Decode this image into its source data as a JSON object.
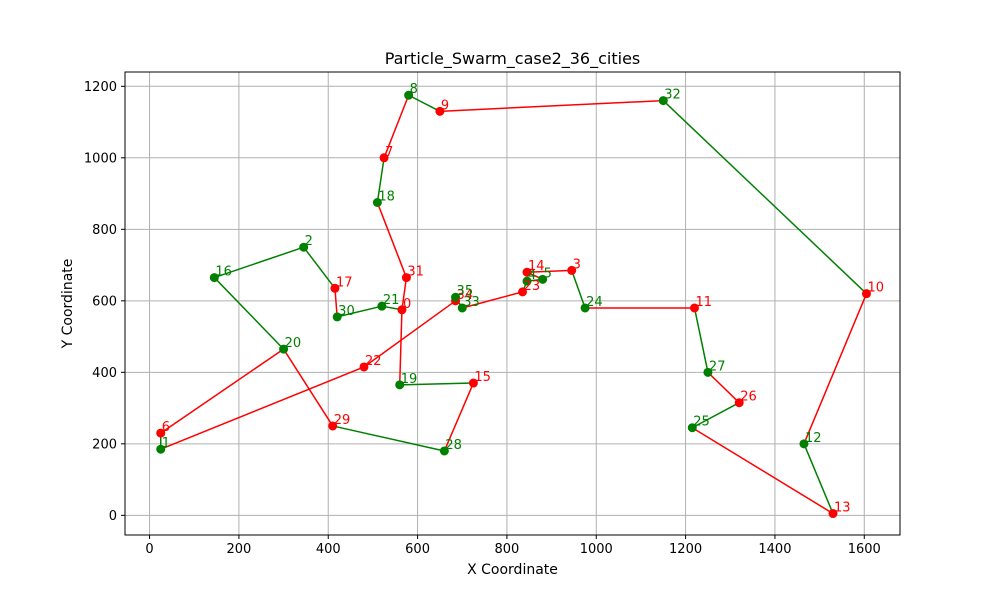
{
  "chart_data": {
    "type": "scatter",
    "title": "Particle_Swarm_case2_36_cities",
    "xlabel": "X Coordinate",
    "ylabel": "Y Coordinate",
    "xlim": [
      -55,
      1680
    ],
    "ylim": [
      -55,
      1240
    ],
    "xticks": [
      0,
      200,
      400,
      600,
      800,
      1000,
      1200,
      1400,
      1600
    ],
    "yticks": [
      0,
      200,
      400,
      600,
      800,
      1000,
      1200
    ],
    "grid": true,
    "colors": {
      "red": "#ff0000",
      "green": "#008000"
    },
    "cities": [
      {
        "id": "0",
        "x": 565,
        "y": 575,
        "color": "red"
      },
      {
        "id": "1",
        "x": 25,
        "y": 185,
        "color": "green"
      },
      {
        "id": "2",
        "x": 345,
        "y": 750,
        "color": "green"
      },
      {
        "id": "3",
        "x": 945,
        "y": 685,
        "color": "red"
      },
      {
        "id": "4",
        "x": 845,
        "y": 655,
        "color": "green"
      },
      {
        "id": "5",
        "x": 880,
        "y": 660,
        "color": "green"
      },
      {
        "id": "6",
        "x": 25,
        "y": 230,
        "color": "red"
      },
      {
        "id": "7",
        "x": 525,
        "y": 1000,
        "color": "red"
      },
      {
        "id": "8",
        "x": 580,
        "y": 1175,
        "color": "green"
      },
      {
        "id": "9",
        "x": 650,
        "y": 1130,
        "color": "red"
      },
      {
        "id": "10",
        "x": 1605,
        "y": 620,
        "color": "red"
      },
      {
        "id": "11",
        "x": 1220,
        "y": 580,
        "color": "red"
      },
      {
        "id": "12",
        "x": 1465,
        "y": 200,
        "color": "green"
      },
      {
        "id": "13",
        "x": 1530,
        "y": 5,
        "color": "red"
      },
      {
        "id": "14",
        "x": 845,
        "y": 680,
        "color": "red"
      },
      {
        "id": "15",
        "x": 725,
        "y": 370,
        "color": "red"
      },
      {
        "id": "16",
        "x": 145,
        "y": 665,
        "color": "green"
      },
      {
        "id": "17",
        "x": 415,
        "y": 635,
        "color": "red"
      },
      {
        "id": "18",
        "x": 510,
        "y": 875,
        "color": "green"
      },
      {
        "id": "19",
        "x": 560,
        "y": 365,
        "color": "green"
      },
      {
        "id": "20",
        "x": 300,
        "y": 465,
        "color": "green"
      },
      {
        "id": "21",
        "x": 520,
        "y": 585,
        "color": "green"
      },
      {
        "id": "22",
        "x": 480,
        "y": 415,
        "color": "red"
      },
      {
        "id": "23",
        "x": 835,
        "y": 625,
        "color": "red"
      },
      {
        "id": "24",
        "x": 975,
        "y": 580,
        "color": "green"
      },
      {
        "id": "25",
        "x": 1215,
        "y": 245,
        "color": "green"
      },
      {
        "id": "26",
        "x": 1320,
        "y": 315,
        "color": "red"
      },
      {
        "id": "27",
        "x": 1250,
        "y": 400,
        "color": "green"
      },
      {
        "id": "28",
        "x": 660,
        "y": 180,
        "color": "green"
      },
      {
        "id": "29",
        "x": 410,
        "y": 250,
        "color": "red"
      },
      {
        "id": "30",
        "x": 420,
        "y": 555,
        "color": "green"
      },
      {
        "id": "31",
        "x": 575,
        "y": 665,
        "color": "red"
      },
      {
        "id": "32",
        "x": 1150,
        "y": 1160,
        "color": "green"
      },
      {
        "id": "33",
        "x": 700,
        "y": 580,
        "color": "green"
      },
      {
        "id": "34",
        "x": 685,
        "y": 600,
        "color": "red"
      },
      {
        "id": "35",
        "x": 685,
        "y": 610,
        "color": "green"
      }
    ],
    "tour": [
      "0",
      "31",
      "18",
      "7",
      "8",
      "9",
      "32",
      "10",
      "12",
      "13",
      "25",
      "26",
      "27",
      "11",
      "24",
      "3",
      "14",
      "5",
      "4",
      "23",
      "33",
      "35",
      "34",
      "22",
      "1",
      "6",
      "20",
      "16",
      "2",
      "17",
      "30",
      "21",
      "0"
    ],
    "tour_continued": [
      "0",
      "19",
      "15",
      "28",
      "29",
      "20"
    ]
  }
}
